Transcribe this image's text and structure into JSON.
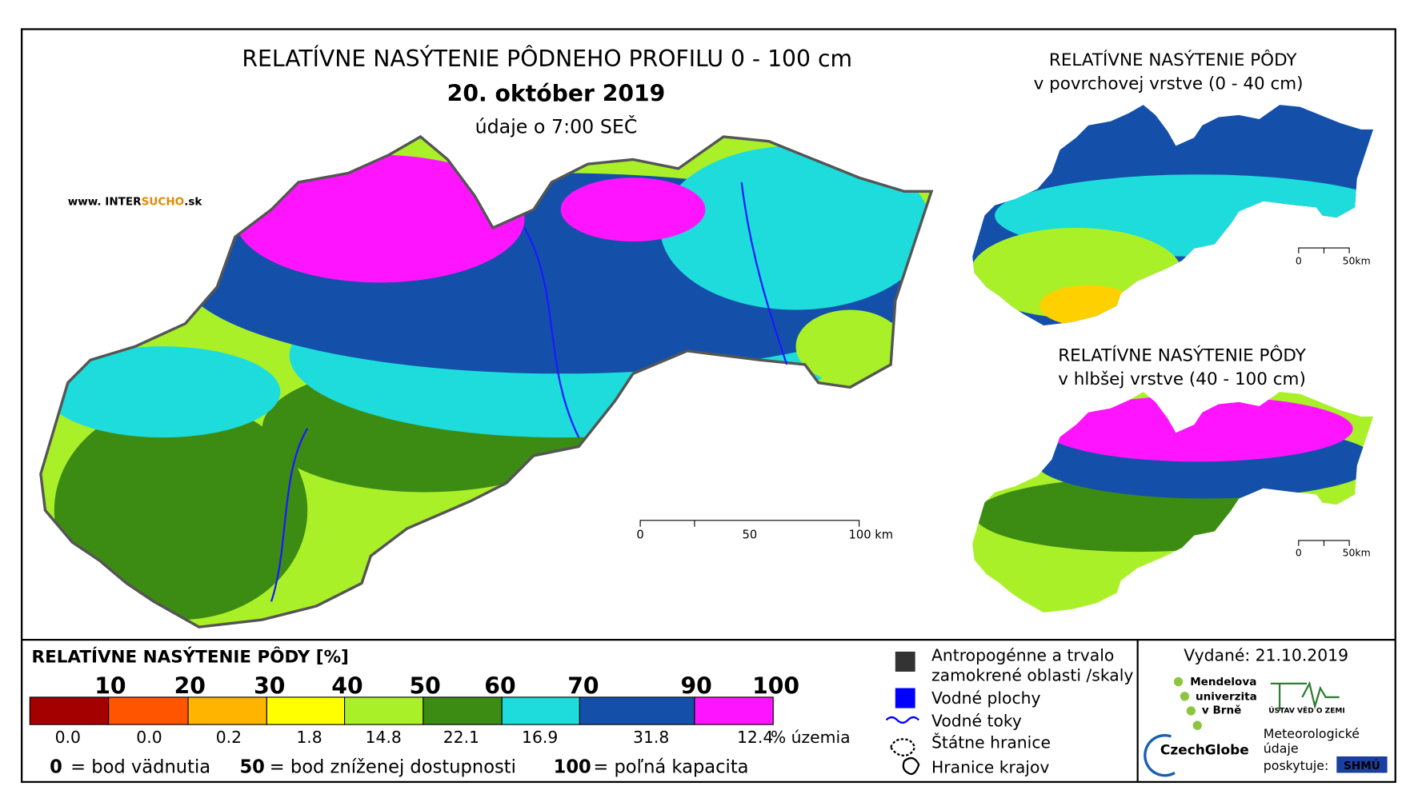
{
  "header": {
    "title": "RELATÍVNE NASÝTENIE PÔDNEHO PROFILU 0 - 100 cm",
    "date": "20. október 2019",
    "note": "údaje o 7:00 SEČ",
    "website": [
      "www. INTER",
      "SUCHO",
      ".sk"
    ]
  },
  "scale_bar": {
    "labels": [
      "0",
      "50",
      "100 km"
    ]
  },
  "insets": [
    {
      "title": [
        "RELATÍVNE NASÝTENIE PÔDY",
        "v povrchovej vrstve (0 - 40 cm)"
      ],
      "scale_labels": [
        "0",
        "50km"
      ]
    },
    {
      "title": [
        "RELATÍVNE NASÝTENIE PÔDY",
        "v hlbšej vrstve (40 - 100 cm)"
      ],
      "scale_labels": [
        "0",
        "50km"
      ]
    }
  ],
  "legend": {
    "title": "RELATÍVNE NASÝTENIE PÔDY [%]",
    "thresholds": [
      "10",
      "20",
      "30",
      "40",
      "50",
      "60",
      "70",
      "90",
      "100"
    ],
    "colors": [
      "#a50000",
      "#ff5500",
      "#ffb400",
      "#ffff00",
      "#aaf028",
      "#3c8c14",
      "#1edcdc",
      "#1450aa",
      "#ff14ff"
    ],
    "shares": [
      "0.0",
      "0.0",
      "0.2",
      "1.8",
      "14.8",
      "22.1",
      "16.9",
      "31.8",
      "12.4"
    ],
    "unit": "% územia",
    "notes": [
      {
        "key": "0",
        "text": "= bod vädnutia"
      },
      {
        "key": "50",
        "text": "= bod zníženej dostupnosti"
      },
      {
        "key": "100",
        "text": "= poľná kapacita"
      }
    ]
  },
  "map_legend": {
    "items": [
      "Antropogénne a trvalo",
      "zamokrené oblasti /skaly",
      "Vodné plochy",
      "Vodné toky",
      "Štátne hranice",
      "Hranice krajov"
    ]
  },
  "issued": "Vydané: 21.10.2019",
  "logos": {
    "mendel": [
      "Mendelova",
      "univerzita",
      "v Brně"
    ],
    "czechglobe": "CzechGlobe",
    "ustav": "ÚSTAV VĚD O ZEMI",
    "meteo": [
      "Meteorologické",
      "údaje",
      "poskytuje:"
    ],
    "shmu": "SHMÚ"
  }
}
